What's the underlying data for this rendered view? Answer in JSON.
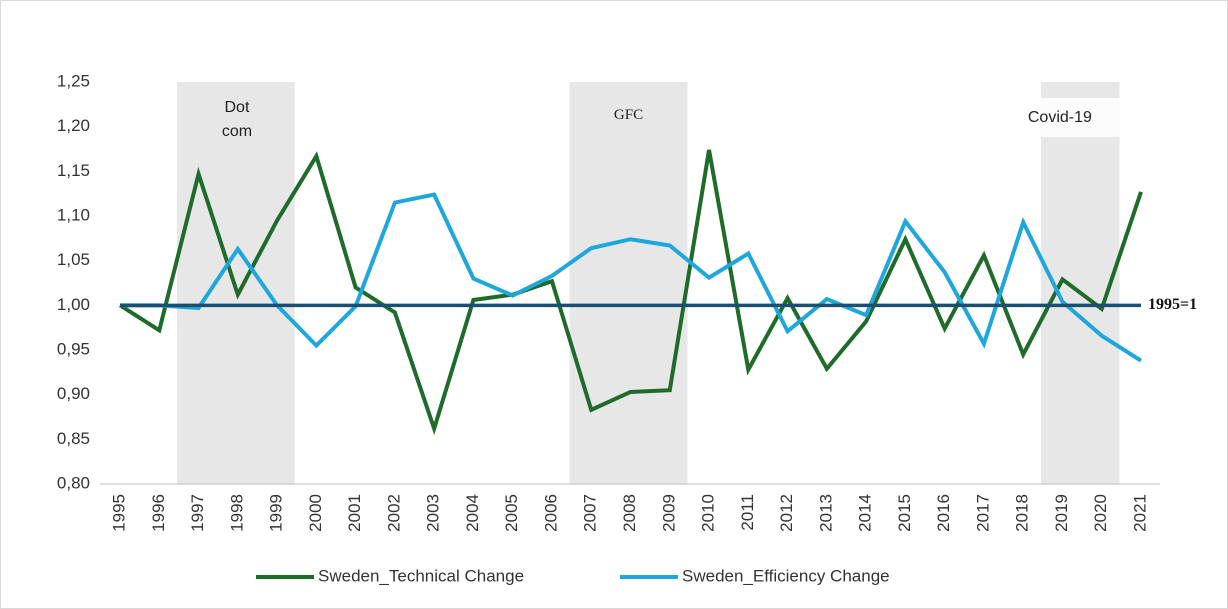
{
  "chart_data": {
    "type": "line",
    "categories": [
      "1995",
      "1996",
      "1997",
      "1998",
      "1999",
      "2000",
      "2001",
      "2002",
      "2003",
      "2004",
      "2005",
      "2006",
      "2007",
      "2008",
      "2009",
      "2010",
      "2011",
      "2012",
      "2013",
      "2014",
      "2015",
      "2016",
      "2017",
      "2018",
      "2019",
      "2020",
      "2021"
    ],
    "series": [
      {
        "name": "Sweden_Technical Change",
        "color": "#1e6b2a",
        "values": [
          1.0,
          0.972,
          1.147,
          1.012,
          1.095,
          1.167,
          1.02,
          0.992,
          0.862,
          1.006,
          1.012,
          1.027,
          0.883,
          0.903,
          0.905,
          1.174,
          0.928,
          1.008,
          0.929,
          0.982,
          1.074,
          0.974,
          1.056,
          0.945,
          1.029,
          0.996,
          1.127
        ]
      },
      {
        "name": "Sweden_Efficiency Change",
        "color": "#1ea7dc",
        "values": [
          1.0,
          1.0,
          0.997,
          1.063,
          1.0,
          0.955,
          0.999,
          1.115,
          1.124,
          1.03,
          1.011,
          1.033,
          1.064,
          1.074,
          1.067,
          1.031,
          1.058,
          0.971,
          1.007,
          0.989,
          1.094,
          1.037,
          0.957,
          1.093,
          1.004,
          0.966,
          0.938
        ]
      }
    ],
    "reference_line": {
      "value": 1,
      "label": "1995=1",
      "color": "#1b4f72"
    },
    "shaded_periods": [
      {
        "label": "Dot com",
        "start": "1997",
        "end": "1999"
      },
      {
        "label": "GFC",
        "start": "2007",
        "end": "2009"
      },
      {
        "label": "Covid-19",
        "start": "2019",
        "end": "2020"
      }
    ],
    "ylim": [
      0.8,
      1.25
    ],
    "yticks": [
      {
        "value": 0.8,
        "label": "0,80"
      },
      {
        "value": 0.85,
        "label": "0,85"
      },
      {
        "value": 0.9,
        "label": "0,90"
      },
      {
        "value": 0.95,
        "label": "0,95"
      },
      {
        "value": 1.0,
        "label": "1,00"
      },
      {
        "value": 1.05,
        "label": "1,05"
      },
      {
        "value": 1.1,
        "label": "1,10"
      },
      {
        "value": 1.15,
        "label": "1,15"
      },
      {
        "value": 1.2,
        "label": "1,20"
      },
      {
        "value": 1.25,
        "label": "1,25"
      }
    ],
    "grid": false,
    "legend": "bottom"
  }
}
